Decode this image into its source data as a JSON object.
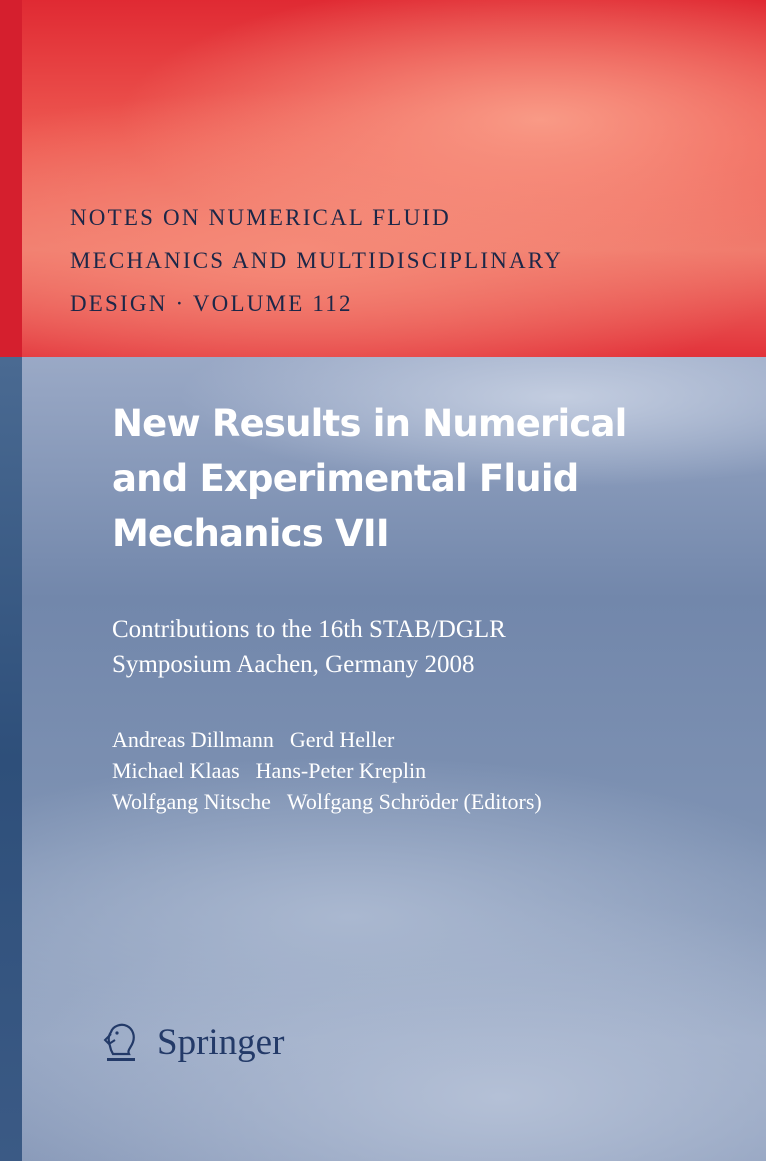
{
  "series": {
    "lines": [
      "NOTES ON NUMERICAL FLUID",
      "MECHANICS AND MULTIDISCIPLINARY",
      "DESIGN · VOLUME 112"
    ]
  },
  "title": {
    "lines": [
      "New Results in Numerical",
      "and Experimental Fluid",
      "Mechanics VII"
    ]
  },
  "subtitle": {
    "lines": [
      "Contributions to the 16th STAB/DGLR",
      "Symposium Aachen, Germany 2008"
    ]
  },
  "editors": {
    "rows": [
      [
        "Andreas Dillmann",
        "Gerd Heller"
      ],
      [
        "Michael Klaas",
        "Hans-Peter Kreplin"
      ],
      [
        "Wolfgang Nitsche",
        "Wolfgang Schröder (Editors)"
      ]
    ]
  },
  "publisher": {
    "name": "Springer",
    "logo_icon": "springer-knight-icon"
  },
  "colors": {
    "band_red": "#e02a33",
    "series_text": "#1c2748",
    "body_blue": "#7a8eb0",
    "spine_blue": "#2e4f7a"
  }
}
